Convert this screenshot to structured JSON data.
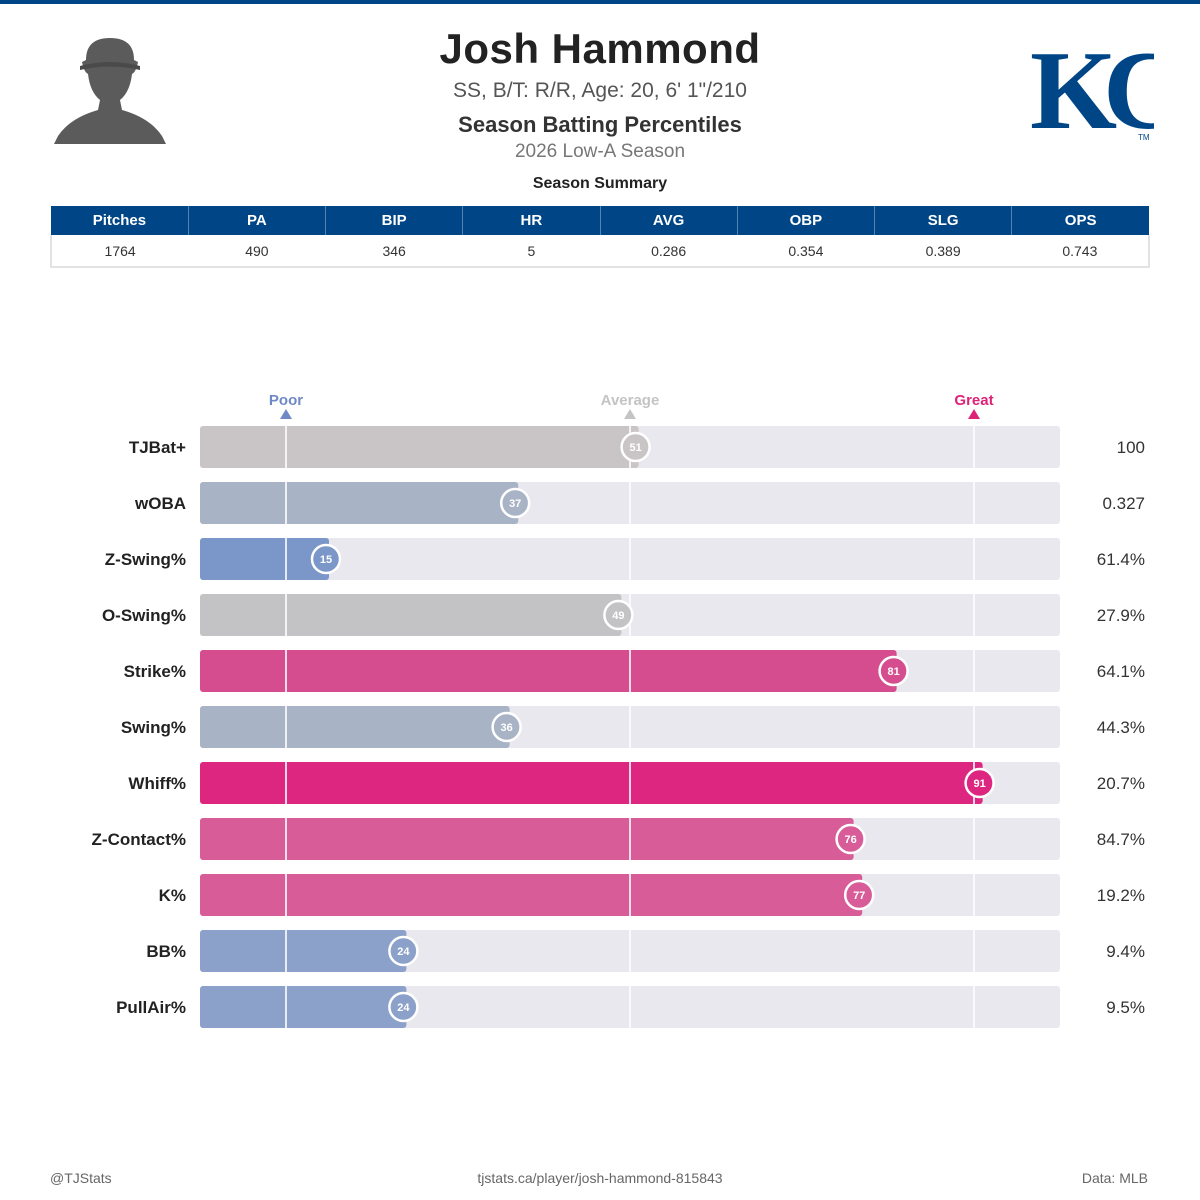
{
  "header": {
    "name": "Josh Hammond",
    "bio": "SS, B/T: R/R, Age: 20, 6' 1\"/210",
    "report_title": "Season Batting Percentiles",
    "season": "2026 Low-A Season",
    "logo_text": "KC",
    "logo_tm": "TM",
    "brand_color": "#004687"
  },
  "summary": {
    "caption": "Season Summary",
    "columns": [
      "Pitches",
      "PA",
      "BIP",
      "HR",
      "AVG",
      "OBP",
      "SLG",
      "OPS"
    ],
    "values": [
      "1764",
      "490",
      "346",
      "5",
      "0.286",
      "0.354",
      "0.389",
      "0.743"
    ]
  },
  "chart_data": {
    "type": "bar",
    "orientation": "horizontal",
    "xlim": [
      0,
      100
    ],
    "markers": [
      {
        "label": "Poor",
        "value": 10,
        "color": "#6f89c6"
      },
      {
        "label": "Average",
        "value": 50,
        "color": "#c4c4c4"
      },
      {
        "label": "Great",
        "value": 90,
        "color": "#dd2277"
      }
    ],
    "categories": [
      "TJBat+",
      "wOBA",
      "Z-Swing%",
      "O-Swing%",
      "Strike%",
      "Swing%",
      "Whiff%",
      "Z-Contact%",
      "K%",
      "BB%",
      "PullAir%"
    ],
    "percentiles": [
      51,
      37,
      15,
      49,
      81,
      36,
      91,
      76,
      77,
      24,
      24
    ],
    "stat_values": [
      "100",
      "0.327",
      "61.4%",
      "27.9%",
      "64.1%",
      "44.3%",
      "20.7%",
      "84.7%",
      "19.2%",
      "9.4%",
      "9.5%"
    ],
    "bar_colors": [
      "#c9c4c5",
      "#a8b3c6",
      "#7b96c9",
      "#c3c3c5",
      "#d64d8f",
      "#a8b3c6",
      "#dd2680",
      "#d85c97",
      "#d85c97",
      "#8ba1ca",
      "#8ba1ca"
    ],
    "track_color": "#e8e8ee",
    "grid": true
  },
  "footer": {
    "left": "@TJStats",
    "center": "tjstats.ca/player/josh-hammond-815843",
    "right": "Data: MLB"
  }
}
